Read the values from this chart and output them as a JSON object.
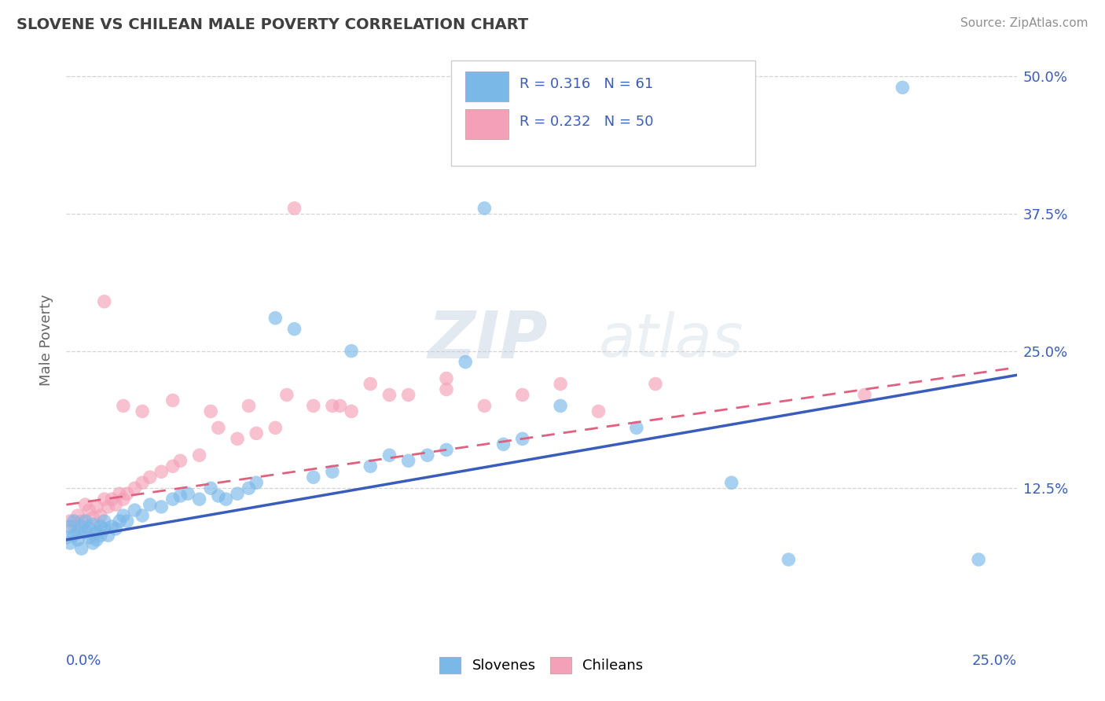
{
  "title": "SLOVENE VS CHILEAN MALE POVERTY CORRELATION CHART",
  "source": "Source: ZipAtlas.com",
  "ylabel": "Male Poverty",
  "ylabel_ticks": [
    "12.5%",
    "25.0%",
    "37.5%",
    "50.0%"
  ],
  "xlim": [
    0.0,
    0.25
  ],
  "ylim": [
    -0.005,
    0.525
  ],
  "slovene_color": "#7ab8e8",
  "chilean_color": "#f4a0b8",
  "slovene_line_color": "#3a5cba",
  "chilean_line_color": "#e06080",
  "watermark": "ZIPatlas",
  "title_color": "#404040",
  "source_color": "#909090",
  "slovene_x": [
    0.0,
    0.001,
    0.001,
    0.002,
    0.002,
    0.003,
    0.003,
    0.004,
    0.004,
    0.005,
    0.005,
    0.006,
    0.006,
    0.007,
    0.007,
    0.008,
    0.008,
    0.009,
    0.009,
    0.01,
    0.01,
    0.011,
    0.012,
    0.013,
    0.014,
    0.015,
    0.016,
    0.018,
    0.02,
    0.022,
    0.025,
    0.028,
    0.03,
    0.032,
    0.035,
    0.038,
    0.04,
    0.042,
    0.045,
    0.048,
    0.05,
    0.055,
    0.06,
    0.065,
    0.07,
    0.075,
    0.08,
    0.085,
    0.09,
    0.095,
    0.1,
    0.105,
    0.11,
    0.115,
    0.12,
    0.13,
    0.15,
    0.175,
    0.19,
    0.22,
    0.24
  ],
  "slovene_y": [
    0.08,
    0.075,
    0.09,
    0.082,
    0.095,
    0.085,
    0.078,
    0.09,
    0.07,
    0.085,
    0.095,
    0.08,
    0.088,
    0.075,
    0.092,
    0.085,
    0.078,
    0.09,
    0.082,
    0.088,
    0.095,
    0.082,
    0.09,
    0.088,
    0.095,
    0.1,
    0.095,
    0.105,
    0.1,
    0.11,
    0.108,
    0.115,
    0.118,
    0.12,
    0.115,
    0.125,
    0.118,
    0.115,
    0.12,
    0.125,
    0.13,
    0.28,
    0.27,
    0.135,
    0.14,
    0.25,
    0.145,
    0.155,
    0.15,
    0.155,
    0.16,
    0.24,
    0.38,
    0.165,
    0.17,
    0.2,
    0.18,
    0.13,
    0.06,
    0.49,
    0.06
  ],
  "chilean_x": [
    0.001,
    0.002,
    0.003,
    0.004,
    0.005,
    0.006,
    0.007,
    0.008,
    0.009,
    0.01,
    0.011,
    0.012,
    0.013,
    0.014,
    0.015,
    0.016,
    0.018,
    0.02,
    0.022,
    0.025,
    0.028,
    0.03,
    0.035,
    0.04,
    0.045,
    0.05,
    0.055,
    0.06,
    0.065,
    0.07,
    0.075,
    0.08,
    0.09,
    0.1,
    0.11,
    0.12,
    0.13,
    0.14,
    0.155,
    0.21,
    0.01,
    0.015,
    0.02,
    0.028,
    0.038,
    0.048,
    0.058,
    0.072,
    0.085,
    0.1
  ],
  "chilean_y": [
    0.095,
    0.09,
    0.1,
    0.095,
    0.11,
    0.105,
    0.098,
    0.108,
    0.1,
    0.115,
    0.108,
    0.115,
    0.11,
    0.12,
    0.115,
    0.12,
    0.125,
    0.13,
    0.135,
    0.14,
    0.145,
    0.15,
    0.155,
    0.18,
    0.17,
    0.175,
    0.18,
    0.38,
    0.2,
    0.2,
    0.195,
    0.22,
    0.21,
    0.225,
    0.2,
    0.21,
    0.22,
    0.195,
    0.22,
    0.21,
    0.295,
    0.2,
    0.195,
    0.205,
    0.195,
    0.2,
    0.21,
    0.2,
    0.21,
    0.215
  ],
  "slovene_intercept": 0.078,
  "slovene_slope": 0.6,
  "chilean_intercept": 0.11,
  "chilean_slope": 0.5
}
